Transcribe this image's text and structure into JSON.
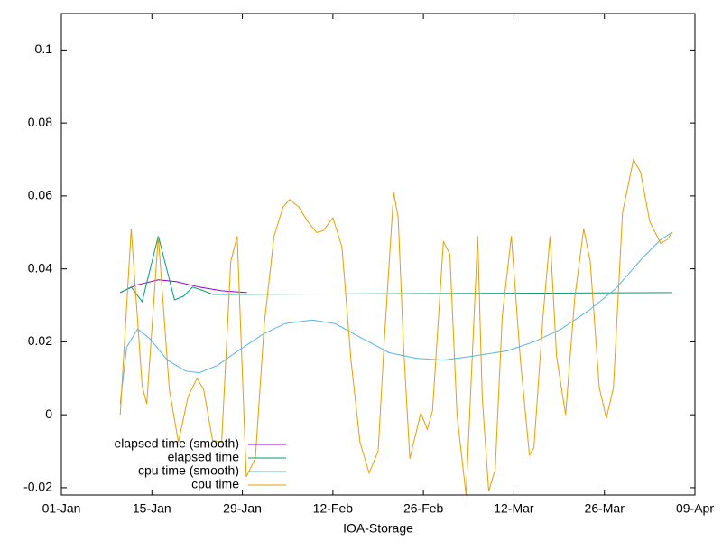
{
  "chart_data": {
    "type": "line",
    "xlabel": "IOA-Storage",
    "xlim": [
      0,
      98
    ],
    "xticks": [
      {
        "value": 0,
        "label": "01-Jan"
      },
      {
        "value": 14,
        "label": "15-Jan"
      },
      {
        "value": 28,
        "label": "29-Jan"
      },
      {
        "value": 42,
        "label": "12-Feb"
      },
      {
        "value": 56,
        "label": "26-Feb"
      },
      {
        "value": 70,
        "label": "12-Mar"
      },
      {
        "value": 84,
        "label": "26-Mar"
      },
      {
        "value": 98,
        "label": "09-Apr"
      }
    ],
    "ylim": [
      -0.022,
      0.11
    ],
    "yticks": [
      -0.02,
      0,
      0.02,
      0.04,
      0.06,
      0.08,
      0.1
    ],
    "legend": "bottom-left",
    "series": [
      {
        "name": "elapsed time (smooth)",
        "color": "#9400d3",
        "x": [
          9.1,
          11.5,
          15.0,
          17.8,
          21.3,
          24.8,
          28.7
        ],
        "values": [
          0.0335,
          0.0355,
          0.037,
          0.0365,
          0.035,
          0.034,
          0.0335
        ]
      },
      {
        "name": "elapsed time",
        "color": "#009e73",
        "x": [
          9.1,
          10.8,
          12.5,
          15.0,
          17.5,
          18.9,
          20.3,
          22.0,
          23.4,
          94.5
        ],
        "values": [
          0.0335,
          0.035,
          0.031,
          0.049,
          0.0315,
          0.0325,
          0.035,
          0.034,
          0.033,
          0.0335
        ]
      },
      {
        "name": "cpu time (smooth)",
        "color": "#56b4e9",
        "x": [
          9.1,
          10.1,
          11.8,
          13.6,
          16.4,
          19.2,
          21.3,
          24.1,
          26.9,
          31.1,
          34.6,
          38.8,
          42.3,
          46.5,
          50.7,
          54.9,
          59.1,
          63.3,
          68.9,
          73.1,
          77.3,
          81.5,
          85.7,
          89.9,
          92.7,
          94.5
        ],
        "values": [
          0.003,
          0.0185,
          0.0235,
          0.021,
          0.015,
          0.012,
          0.0115,
          0.0135,
          0.017,
          0.022,
          0.025,
          0.026,
          0.025,
          0.021,
          0.017,
          0.0155,
          0.015,
          0.016,
          0.0175,
          0.02,
          0.0235,
          0.0285,
          0.0345,
          0.043,
          0.048,
          0.05
        ]
      },
      {
        "name": "cpu time",
        "color": "#e69f00",
        "x": [
          9.1,
          10.8,
          12.5,
          13.2,
          15.0,
          16.7,
          18.1,
          19.6,
          21.0,
          22.0,
          23.4,
          24.8,
          26.2,
          27.2,
          28.6,
          30.0,
          31.4,
          32.9,
          34.3,
          35.3,
          36.7,
          38.1,
          39.5,
          40.5,
          42.0,
          43.4,
          44.8,
          46.2,
          47.6,
          49.0,
          50.0,
          51.4,
          52.1,
          52.9,
          53.9,
          55.6,
          56.6,
          57.4,
          59.1,
          60.1,
          61.2,
          62.6,
          64.4,
          65.1,
          66.1,
          67.1,
          68.2,
          69.6,
          71.0,
          72.4,
          73.1,
          74.5,
          75.6,
          76.6,
          78.0,
          79.4,
          80.8,
          81.8,
          83.2,
          84.3,
          85.4,
          86.8,
          88.5,
          89.6,
          91.0,
          92.7,
          93.7,
          94.5
        ],
        "values": [
          0,
          0.051,
          0.008,
          0.003,
          0.049,
          0.007,
          -0.0075,
          0.005,
          0.01,
          0.007,
          -0.007,
          -0.0075,
          0.042,
          0.049,
          -0.017,
          -0.012,
          0.025,
          0.049,
          0.057,
          0.059,
          0.057,
          0.053,
          0.05,
          0.0505,
          0.054,
          0.046,
          0.015,
          -0.0075,
          -0.016,
          -0.01,
          0.022,
          0.061,
          0.054,
          0.02,
          -0.012,
          0.0005,
          -0.004,
          0.001,
          0.0475,
          0.044,
          0,
          -0.022,
          0.049,
          0.005,
          -0.021,
          -0.015,
          0.027,
          0.049,
          0.015,
          -0.011,
          -0.009,
          0.027,
          0.049,
          0.016,
          0,
          0.032,
          0.051,
          0.042,
          0.0075,
          -0.001,
          0.0075,
          0.0555,
          0.07,
          0.0665,
          0.053,
          0.047,
          0.048,
          0.05
        ]
      }
    ]
  }
}
